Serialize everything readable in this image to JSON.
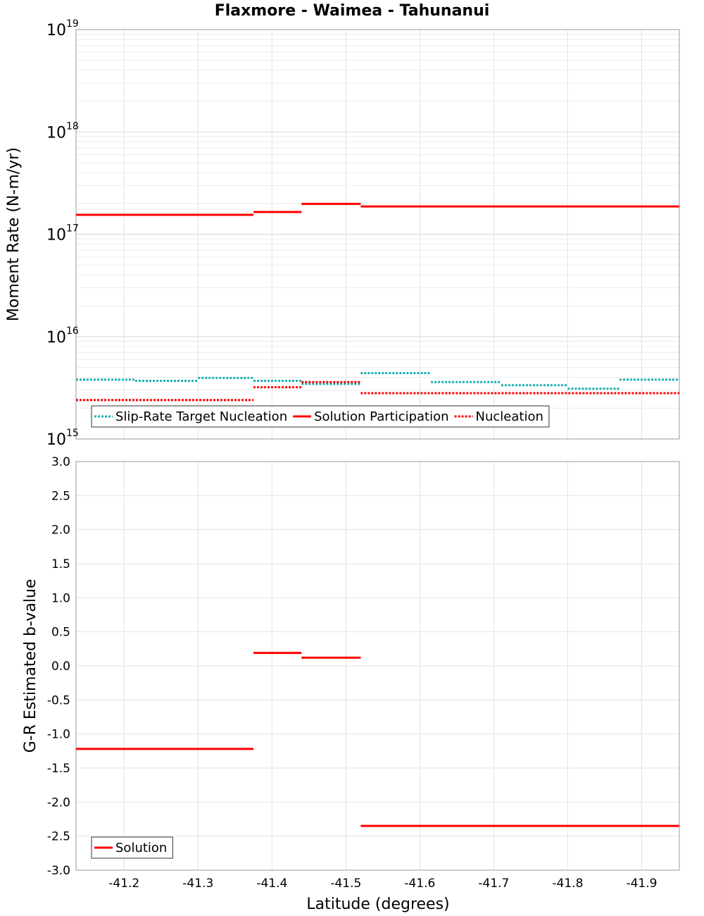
{
  "chart_data": {
    "title": "Flaxmore - Waimea - Tahunanui",
    "xlabel": "Latitude (degrees)",
    "xlim": [
      -41.135,
      -41.951
    ],
    "x_ticks": [
      "-41.2",
      "-41.3",
      "-41.4",
      "-41.5",
      "-41.6",
      "-41.7",
      "-41.8",
      "-41.9"
    ],
    "x_tick_values": [
      -41.2,
      -41.3,
      -41.4,
      -41.5,
      -41.6,
      -41.7,
      -41.8,
      -41.9
    ],
    "panels": [
      {
        "type": "step",
        "ylabel": "Moment Rate (N-m/yr)",
        "yscale": "log",
        "ylim": [
          1000000000000000.0,
          1e+19
        ],
        "y_ticks": [
          {
            "value": 1000000000000000.0,
            "base": "10",
            "exp": "15"
          },
          {
            "value": 1e+16,
            "base": "10",
            "exp": "16"
          },
          {
            "value": 1e+17,
            "base": "10",
            "exp": "17"
          },
          {
            "value": 1e+18,
            "base": "10",
            "exp": "18"
          },
          {
            "value": 1e+19,
            "base": "10",
            "exp": "19"
          }
        ],
        "grid": true,
        "legend_position": "bottom-left",
        "series": [
          {
            "name": "Slip-Rate Target Nucleation",
            "color": "#1ab2b2",
            "style": "dotted",
            "segments": [
              {
                "x": [
                  -41.135,
                  -41.215
                ],
                "y": 3800000000000000.0
              },
              {
                "x": [
                  -41.215,
                  -41.3
                ],
                "y": 3700000000000000.0
              },
              {
                "x": [
                  -41.3,
                  -41.375
                ],
                "y": 3950000000000000.0
              },
              {
                "x": [
                  -41.375,
                  -41.44
                ],
                "y": 3700000000000000.0
              },
              {
                "x": [
                  -41.44,
                  -41.52
                ],
                "y": 3450000000000000.0
              },
              {
                "x": [
                  -41.52,
                  -41.615
                ],
                "y": 4400000000000000.0
              },
              {
                "x": [
                  -41.615,
                  -41.71
                ],
                "y": 3600000000000000.0
              },
              {
                "x": [
                  -41.71,
                  -41.8
                ],
                "y": 3350000000000000.0
              },
              {
                "x": [
                  -41.8,
                  -41.87
                ],
                "y": 3100000000000000.0
              },
              {
                "x": [
                  -41.87,
                  -41.951
                ],
                "y": 3800000000000000.0
              }
            ]
          },
          {
            "name": "Solution Participation",
            "color": "#ff0000",
            "style": "solid",
            "segments": [
              {
                "x": [
                  -41.135,
                  -41.375
                ],
                "y": 1.55e+17
              },
              {
                "x": [
                  -41.375,
                  -41.44
                ],
                "y": 1.65e+17
              },
              {
                "x": [
                  -41.44,
                  -41.52
                ],
                "y": 1.98e+17
              },
              {
                "x": [
                  -41.52,
                  -41.951
                ],
                "y": 1.87e+17
              }
            ]
          },
          {
            "name": "Nucleation",
            "color": "#ff0000",
            "style": "dotted",
            "segments": [
              {
                "x": [
                  -41.135,
                  -41.375
                ],
                "y": 2400000000000000.0
              },
              {
                "x": [
                  -41.375,
                  -41.44
                ],
                "y": 3200000000000000.0
              },
              {
                "x": [
                  -41.44,
                  -41.52
                ],
                "y": 3600000000000000.0
              },
              {
                "x": [
                  -41.52,
                  -41.951
                ],
                "y": 2800000000000000.0
              }
            ]
          }
        ]
      },
      {
        "type": "step",
        "ylabel": "G-R Estimated b-value",
        "yscale": "linear",
        "ylim": [
          -3.0,
          3.0
        ],
        "y_ticks": [
          "3.0",
          "2.5",
          "2.0",
          "1.5",
          "1.0",
          "0.5",
          "0.0",
          "-0.5",
          "-1.0",
          "-1.5",
          "-2.0",
          "-2.5",
          "-3.0"
        ],
        "y_tick_values": [
          3.0,
          2.5,
          2.0,
          1.5,
          1.0,
          0.5,
          0.0,
          -0.5,
          -1.0,
          -1.5,
          -2.0,
          -2.5,
          -3.0
        ],
        "grid": true,
        "legend_position": "bottom-left",
        "series": [
          {
            "name": "Solution",
            "color": "#ff0000",
            "style": "solid",
            "segments": [
              {
                "x": [
                  -41.135,
                  -41.375
                ],
                "y": -1.22
              },
              {
                "x": [
                  -41.375,
                  -41.44
                ],
                "y": 0.19
              },
              {
                "x": [
                  -41.44,
                  -41.52
                ],
                "y": 0.12
              },
              {
                "x": [
                  -41.52,
                  -41.951
                ],
                "y": -2.35
              }
            ]
          }
        ]
      }
    ]
  }
}
